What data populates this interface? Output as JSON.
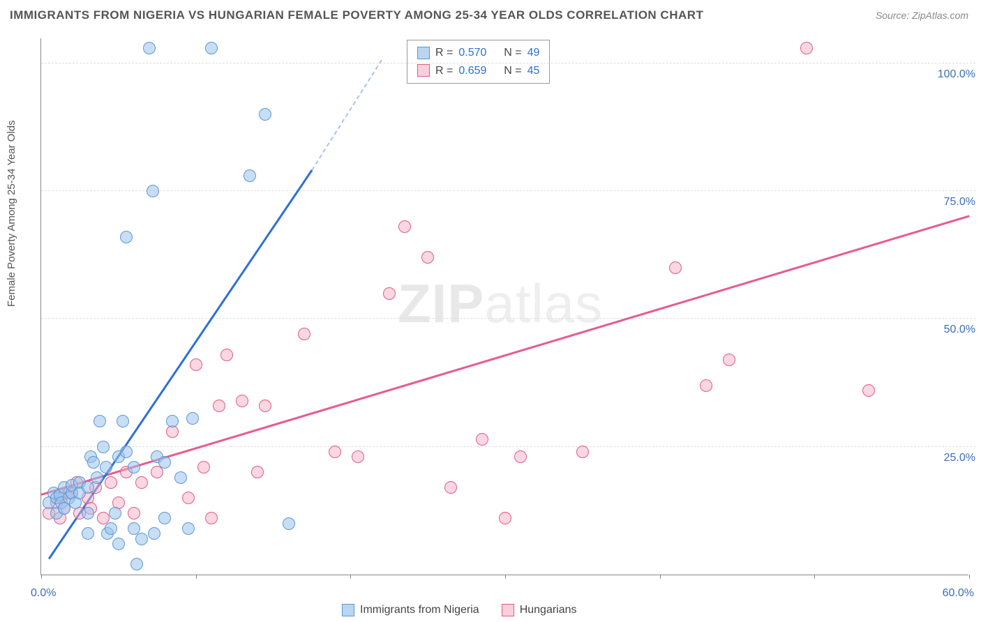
{
  "chart": {
    "title": "IMMIGRANTS FROM NIGERIA VS HUNGARIAN FEMALE POVERTY AMONG 25-34 YEAR OLDS CORRELATION CHART",
    "source": "Source: ZipAtlas.com",
    "y_axis_title": "Female Poverty Among 25-34 Year Olds",
    "type": "scatter",
    "watermark_bold": "ZIP",
    "watermark_thin": "atlas",
    "xlim": [
      0,
      60
    ],
    "ylim": [
      0,
      105
    ],
    "x_ticks": [
      0,
      10,
      20,
      30,
      40,
      50,
      60
    ],
    "x_tick_labels": {
      "0": "0.0%",
      "60": "60.0%"
    },
    "y_ticks": [
      25,
      50,
      75,
      100
    ],
    "y_tick_labels": {
      "25": "25.0%",
      "50": "50.0%",
      "75": "75.0%",
      "100": "100.0%"
    },
    "background_color": "#ffffff",
    "grid_color": "#dddddd",
    "axis_color": "#888888",
    "label_color": "#3b6fb6",
    "title_fontsize": 17,
    "label_fontsize": 16,
    "series": {
      "nigeria": {
        "label": "Immigrants from Nigeria",
        "color_fill": "rgba(155,195,235,0.55)",
        "color_stroke": "#5a97d6",
        "marker_size": 18,
        "r_value": "0.570",
        "n_value": "49",
        "trend": {
          "x1": 0.5,
          "y1": 3,
          "x2": 22,
          "y2": 105,
          "color": "#2e6fd6"
        },
        "trend_dash": {
          "x1": 22,
          "y1": 105,
          "x2": 17.5,
          "y2": 79
        },
        "points": [
          [
            0.5,
            14
          ],
          [
            0.8,
            16
          ],
          [
            1.0,
            12
          ],
          [
            1.0,
            15
          ],
          [
            1.2,
            15.5
          ],
          [
            1.3,
            14
          ],
          [
            1.5,
            17
          ],
          [
            1.5,
            13
          ],
          [
            1.8,
            15
          ],
          [
            2.0,
            16
          ],
          [
            2.0,
            17.5
          ],
          [
            2.2,
            14
          ],
          [
            2.5,
            18
          ],
          [
            2.5,
            16
          ],
          [
            3.0,
            17
          ],
          [
            3.0,
            12
          ],
          [
            3.0,
            8
          ],
          [
            3.2,
            23
          ],
          [
            3.4,
            22
          ],
          [
            3.6,
            19
          ],
          [
            3.8,
            30
          ],
          [
            4.0,
            25
          ],
          [
            4.2,
            21
          ],
          [
            4.3,
            8
          ],
          [
            4.5,
            9
          ],
          [
            4.8,
            12
          ],
          [
            5.0,
            6
          ],
          [
            5.0,
            23
          ],
          [
            5.3,
            30
          ],
          [
            5.5,
            24
          ],
          [
            5.5,
            66
          ],
          [
            6.0,
            21
          ],
          [
            6.0,
            9
          ],
          [
            6.2,
            2
          ],
          [
            6.5,
            7
          ],
          [
            7.0,
            103
          ],
          [
            7.2,
            75
          ],
          [
            7.3,
            8
          ],
          [
            7.5,
            23
          ],
          [
            8.0,
            11
          ],
          [
            8.0,
            22
          ],
          [
            8.5,
            30
          ],
          [
            9.0,
            19
          ],
          [
            9.8,
            30.5
          ],
          [
            11.0,
            103
          ],
          [
            13.5,
            78
          ],
          [
            14.5,
            90
          ],
          [
            16.0,
            10
          ],
          [
            9.5,
            9
          ]
        ]
      },
      "hungarians": {
        "label": "Hungarians",
        "color_fill": "rgba(245,175,195,0.5)",
        "color_stroke": "#e05a8a",
        "marker_size": 18,
        "r_value": "0.659",
        "n_value": "45",
        "trend": {
          "x1": 0,
          "y1": 15.5,
          "x2": 60,
          "y2": 70,
          "color": "#e85a8f"
        },
        "points": [
          [
            0.5,
            12
          ],
          [
            1.0,
            14
          ],
          [
            1.2,
            11
          ],
          [
            1.3,
            15
          ],
          [
            1.5,
            13
          ],
          [
            1.8,
            16
          ],
          [
            2.0,
            16
          ],
          [
            2.3,
            18
          ],
          [
            2.5,
            12
          ],
          [
            3.0,
            15
          ],
          [
            3.2,
            13
          ],
          [
            3.5,
            17
          ],
          [
            4.0,
            11
          ],
          [
            4.5,
            18
          ],
          [
            5.0,
            14
          ],
          [
            5.5,
            20
          ],
          [
            6.0,
            12
          ],
          [
            6.5,
            18
          ],
          [
            7.5,
            20
          ],
          [
            8.5,
            28
          ],
          [
            9.5,
            15
          ],
          [
            10.0,
            41
          ],
          [
            10.5,
            21
          ],
          [
            11.0,
            11
          ],
          [
            11.5,
            33
          ],
          [
            12.0,
            43
          ],
          [
            13.0,
            34
          ],
          [
            14.0,
            20
          ],
          [
            14.5,
            33
          ],
          [
            17.0,
            47
          ],
          [
            19.0,
            24
          ],
          [
            20.5,
            23
          ],
          [
            22.5,
            55
          ],
          [
            23.5,
            68
          ],
          [
            25.0,
            62
          ],
          [
            26.5,
            17
          ],
          [
            28.5,
            26.5
          ],
          [
            30.0,
            11
          ],
          [
            31.0,
            23
          ],
          [
            35.0,
            24
          ],
          [
            41.0,
            60
          ],
          [
            43.0,
            37
          ],
          [
            44.5,
            42
          ],
          [
            49.5,
            103
          ],
          [
            53.5,
            36
          ]
        ]
      }
    },
    "stats_text": {
      "r_label": "R =",
      "n_label": "N ="
    }
  }
}
